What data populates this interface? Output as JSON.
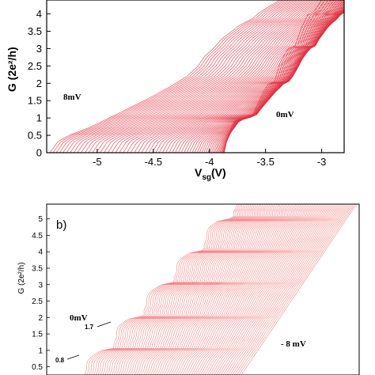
{
  "chart_data": [
    {
      "panel": "a",
      "type": "line",
      "xlabel": "V",
      "xlabel_sub": "sg",
      "xlabel_unit": "(V)",
      "ylabel": "G (2e²/h)",
      "xlim": [
        -5.45,
        -2.8
      ],
      "ylim": [
        0,
        4.4
      ],
      "x_ticks": [
        {
          "value": -5,
          "label": "-5"
        },
        {
          "value": -4.5,
          "label": "-4.5"
        },
        {
          "value": -4,
          "label": "-4"
        },
        {
          "value": -3.5,
          "label": "-3.5"
        },
        {
          "value": -3,
          "label": "-3"
        }
      ],
      "y_ticks": [
        {
          "value": 0,
          "label": "0"
        },
        {
          "value": 0.5,
          "label": "0.5"
        },
        {
          "value": 1,
          "label": "1"
        },
        {
          "value": 1.5,
          "label": "1.5"
        },
        {
          "value": 2,
          "label": "2"
        },
        {
          "value": 2.5,
          "label": "2.5"
        },
        {
          "value": 3,
          "label": "3"
        },
        {
          "value": 3.5,
          "label": "3.5"
        },
        {
          "value": 4,
          "label": "4"
        }
      ],
      "series_family": {
        "count": 66,
        "shift_per_trace_V": 0.0245,
        "plateaus_G": [
          1,
          2,
          3,
          4
        ],
        "trace0_x": [
          -5.42,
          -5.35,
          -5.25,
          -5.05,
          -4.8,
          -4.55,
          -4.35,
          -4.2,
          -4.1,
          -4.05,
          -3.95,
          -3.9,
          -3.82,
          -3.72,
          -3.62,
          -3.55,
          -3.45,
          -3.37
        ],
        "trace0_y": [
          0,
          0.32,
          0.5,
          0.75,
          1.15,
          1.55,
          1.9,
          2.2,
          2.5,
          2.75,
          3.05,
          3.25,
          3.45,
          3.7,
          3.85,
          4.05,
          4.25,
          4.4
        ],
        "trace_last_x": [
          -3.87,
          -3.85,
          -3.82,
          -3.78,
          -3.72,
          -3.62,
          -3.52,
          -3.47,
          -3.42,
          -3.37,
          -3.3,
          -3.24,
          -3.18,
          -3.12,
          -3.07,
          -3.0
        ],
        "trace_last_y": [
          0,
          0.3,
          0.6,
          0.9,
          1.0,
          1.05,
          1.75,
          2.0,
          2.05,
          2.6,
          3.0,
          3.05,
          3.6,
          4.0,
          4.05,
          4.4
        ],
        "color": "#e03040"
      },
      "annotations": [
        {
          "text": "8mV",
          "x": -5.3,
          "y": 1.6
        },
        {
          "text": "0mV",
          "x": -3.6,
          "y": 1.1
        }
      ]
    },
    {
      "panel": "b",
      "panel_label": "b)",
      "type": "line",
      "ylabel": "G (2e²/h)",
      "ylim": [
        0.25,
        5.45
      ],
      "y_ticks": [
        {
          "value": 0.5,
          "label": "0.5"
        },
        {
          "value": 1,
          "label": "1"
        },
        {
          "value": 1.5,
          "label": "1.5"
        },
        {
          "value": 2,
          "label": "2"
        },
        {
          "value": 2.5,
          "label": "2.5"
        },
        {
          "value": 3,
          "label": "3"
        },
        {
          "value": 3.5,
          "label": "3.5"
        },
        {
          "value": 4,
          "label": "4"
        },
        {
          "value": 4.5,
          "label": "4.5"
        },
        {
          "value": 5,
          "label": "5"
        }
      ],
      "series_family": {
        "count": 70,
        "plateaus_G": [
          1,
          2,
          3,
          4,
          5
        ],
        "color": "#f07070"
      },
      "annotations": [
        {
          "text": "0mV"
        },
        {
          "text": "1.7"
        },
        {
          "text": "0.8"
        },
        {
          "text": "- 8 mV"
        }
      ]
    }
  ]
}
